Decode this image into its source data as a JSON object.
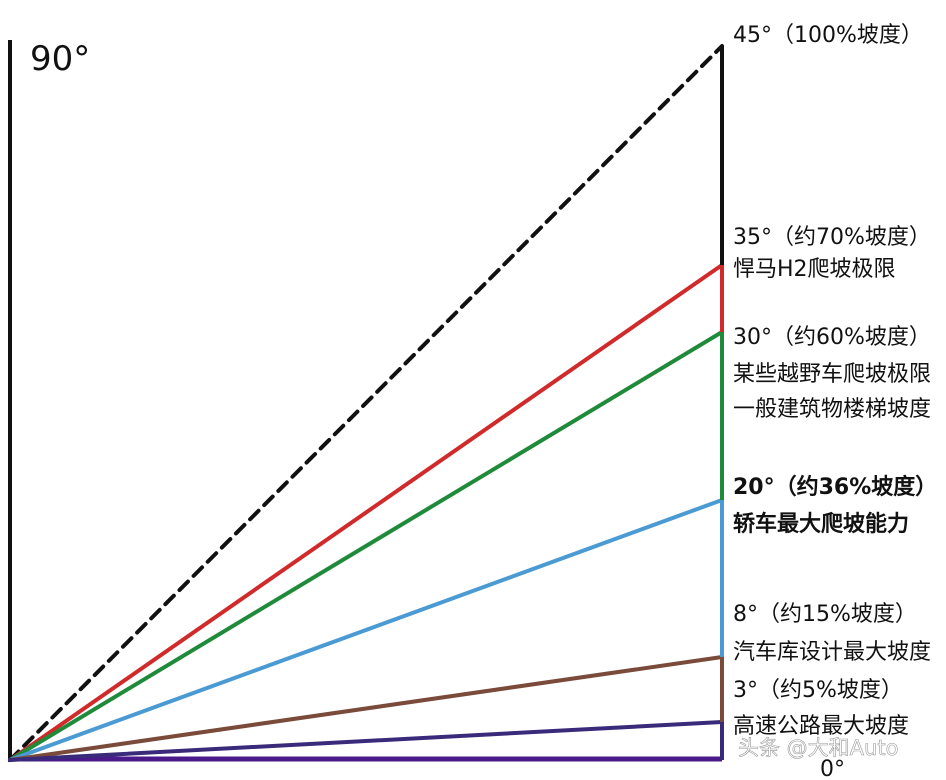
{
  "axis_label_vertical": "90°",
  "axis_label_zero": "0°",
  "watermark": "头条 @大和Auto",
  "slopes": [
    {
      "key": "deg45",
      "angle": 45,
      "color": "#111111",
      "dashed": true,
      "lines": [
        "45°（100%坡度）"
      ]
    },
    {
      "key": "deg35",
      "angle": 35,
      "color": "#d12a2a",
      "dashed": false,
      "lines": [
        "35°（约70%坡度）",
        "悍马H2爬坡极限"
      ]
    },
    {
      "key": "deg30",
      "angle": 30,
      "color": "#1e8a3a",
      "dashed": false,
      "lines": [
        "30°（约60%坡度）",
        "某些越野车爬坡极限",
        "一般建筑物楼梯坡度"
      ]
    },
    {
      "key": "deg20",
      "angle": 20,
      "color": "#4a9ad4",
      "dashed": false,
      "lines": [
        "20°（约36%坡度）",
        "轿车最大爬坡能力"
      ]
    },
    {
      "key": "deg8",
      "angle": 8,
      "color": "#7a4a3a",
      "dashed": false,
      "lines": [
        "8°（约15%坡度）",
        "汽车库设计最大坡度"
      ]
    },
    {
      "key": "deg3",
      "angle": 3,
      "color": "#3a2a7a",
      "dashed": false,
      "lines": [
        "3°（约5%坡度）",
        "高速公路最大坡度"
      ]
    }
  ]
}
